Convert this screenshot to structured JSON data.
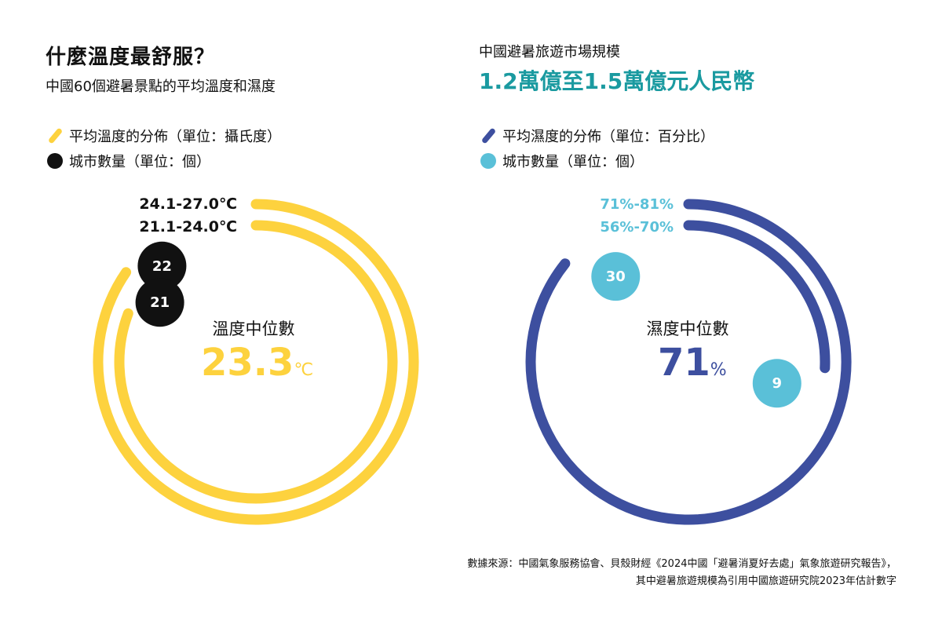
{
  "left": {
    "title": "什麼溫度最舒服？",
    "subtitle": "中國60個避暑景點的平均溫度和濕度",
    "legend": [
      {
        "label": "平均溫度的分佈（單位：攝氏度）",
        "kind": "stroke"
      },
      {
        "label": "城市數量（單位：個）",
        "kind": "dot"
      }
    ],
    "median_label": "溫度中位數",
    "median_value": "23.3",
    "median_unit": "℃"
  },
  "right": {
    "subtitle": "中國避暑旅遊市場規模",
    "title": "1.2萬億至1.5萬億元人民幣",
    "legend": [
      {
        "label": "平均濕度的分佈（單位：百分比）",
        "kind": "stroke"
      },
      {
        "label": "城市數量（單位：個）",
        "kind": "dot"
      }
    ],
    "median_label": "濕度中位數",
    "median_value": "71",
    "median_unit": "%"
  },
  "colors": {
    "temp": "#fdd23e",
    "temp_count": "#111111",
    "humidity": "#3d4f9f",
    "humidity_count": "#5ac0d8",
    "right_title": "#1a9aa0"
  },
  "chart_data": [
    {
      "type": "radial-bar",
      "title": "平均溫度的分佈（單位：攝氏度）",
      "categories": [
        "24.1-27.0℃",
        "21.1-24.0℃"
      ],
      "values": [
        22,
        21
      ],
      "value_label": "城市數量（單位：個）",
      "max": 26,
      "median": 23.3,
      "median_unit": "℃"
    },
    {
      "type": "radial-bar",
      "title": "平均濕度的分佈（單位：百分比）",
      "categories": [
        "71%-81%",
        "56%-70%"
      ],
      "values": [
        30,
        9
      ],
      "value_label": "城市數量（單位：個）",
      "max": 35,
      "median": 71,
      "median_unit": "%"
    }
  ],
  "source": {
    "line1": "數據來源：中國氣象服務協會、貝殼財經《2024中國「避暑消夏好去處」氣象旅遊研究報告》，",
    "line2": "其中避暑旅遊規模為引用中國旅遊研究院2023年估計數字"
  }
}
